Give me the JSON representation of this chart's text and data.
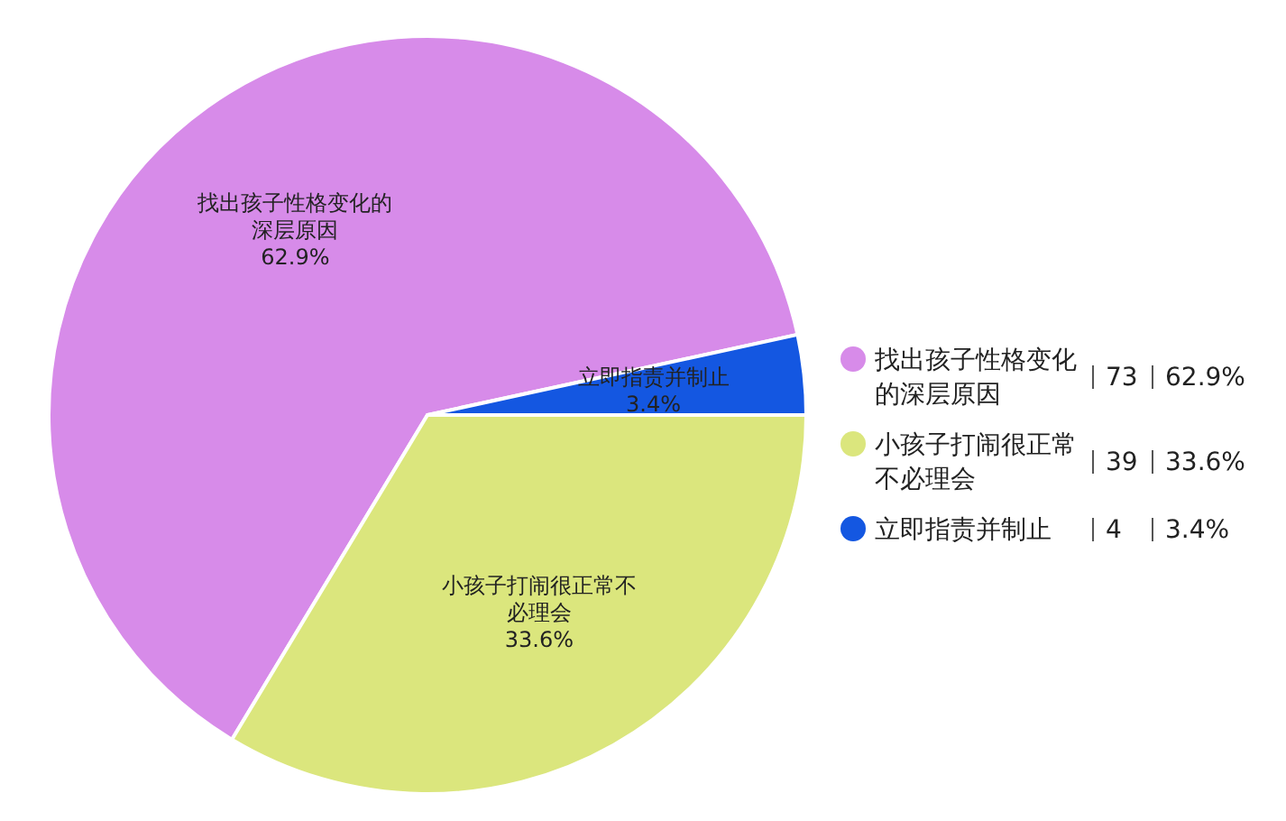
{
  "chart_data": {
    "type": "pie",
    "categories": [
      "找出孩子性格变化的深层原因",
      "小孩子打闹很正常不必理会",
      "立即指责并制止"
    ],
    "values": [
      62.9,
      33.6,
      3.4
    ],
    "value_labels": [
      "62.9%",
      "33.6%",
      "3.4%"
    ],
    "annotations": [
      "73",
      "39",
      "4"
    ],
    "colors": [
      "#d78be9",
      "#dbe67d",
      "#1457e1"
    ],
    "legend": "right"
  }
}
